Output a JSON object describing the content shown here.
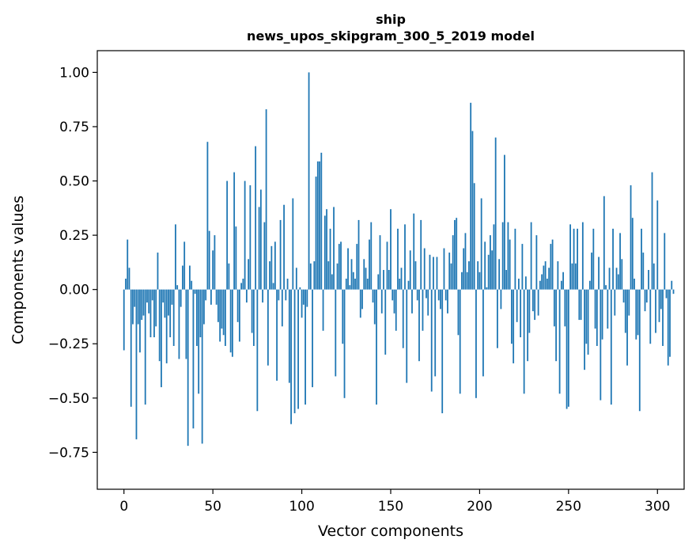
{
  "chart_data": {
    "type": "bar",
    "title": "ship",
    "subtitle": "news_upos_skipgram_300_5_2019 model",
    "xlabel": "Vector components",
    "ylabel": "Components values",
    "xlim": [
      -15,
      315
    ],
    "ylim": [
      -0.92,
      1.1
    ],
    "xticks": [
      0,
      50,
      100,
      150,
      200,
      250,
      300
    ],
    "yticks": [
      -0.75,
      -0.5,
      -0.25,
      0.0,
      0.25,
      0.5,
      0.75,
      1.0
    ],
    "ytick_labels": [
      "−0.75",
      "−0.50",
      "−0.25",
      "0.00",
      "0.25",
      "0.50",
      "0.75",
      "1.00"
    ],
    "grid": false,
    "bar_color": "#1f77b4",
    "values": [
      -0.28,
      0.05,
      0.23,
      0.1,
      -0.54,
      -0.16,
      -0.08,
      -0.69,
      -0.16,
      -0.29,
      -0.14,
      -0.12,
      -0.53,
      -0.06,
      -0.11,
      -0.22,
      -0.05,
      -0.22,
      -0.17,
      0.17,
      -0.33,
      -0.45,
      -0.06,
      -0.13,
      -0.34,
      -0.12,
      -0.22,
      -0.07,
      -0.26,
      0.3,
      0.02,
      -0.32,
      -0.08,
      0.11,
      0.22,
      -0.32,
      -0.72,
      0.11,
      0.04,
      -0.64,
      -0.02,
      -0.26,
      -0.48,
      -0.22,
      -0.71,
      -0.16,
      -0.05,
      0.68,
      0.27,
      -0.07,
      0.18,
      0.25,
      -0.07,
      -0.15,
      -0.24,
      -0.18,
      -0.21,
      -0.26,
      0.5,
      0.12,
      -0.29,
      -0.31,
      0.54,
      0.29,
      -0.15,
      -0.24,
      0.03,
      0.05,
      0.5,
      -0.06,
      0.14,
      0.48,
      -0.2,
      -0.26,
      0.66,
      -0.56,
      0.38,
      0.46,
      -0.06,
      0.31,
      0.83,
      -0.35,
      0.13,
      0.2,
      0.03,
      0.22,
      -0.42,
      -0.05,
      0.32,
      -0.17,
      0.39,
      -0.05,
      0.05,
      -0.43,
      -0.62,
      0.42,
      -0.57,
      0.1,
      -0.55,
      0.01,
      -0.13,
      -0.07,
      -0.53,
      -0.08,
      1.0,
      0.12,
      -0.45,
      0.13,
      0.52,
      0.59,
      0.59,
      0.63,
      -0.19,
      0.34,
      0.37,
      0.13,
      0.28,
      0.07,
      0.38,
      -0.4,
      0.12,
      0.21,
      0.22,
      -0.25,
      -0.5,
      0.05,
      0.19,
      0.02,
      0.14,
      0.08,
      0.05,
      0.21,
      0.32,
      -0.13,
      -0.09,
      0.14,
      0.1,
      0.05,
      0.23,
      0.31,
      -0.06,
      -0.16,
      -0.53,
      0.07,
      0.25,
      -0.11,
      0.09,
      -0.3,
      0.22,
      0.09,
      0.37,
      -0.05,
      -0.11,
      -0.19,
      0.28,
      0.05,
      0.1,
      -0.27,
      0.3,
      -0.43,
      0.04,
      0.18,
      -0.11,
      0.35,
      0.13,
      -0.05,
      -0.33,
      0.32,
      -0.19,
      0.19,
      -0.04,
      -0.12,
      0.16,
      -0.47,
      0.15,
      -0.4,
      0.15,
      -0.05,
      -0.09,
      -0.57,
      0.19,
      -0.05,
      -0.11,
      0.17,
      0.12,
      0.25,
      0.32,
      0.33,
      -0.21,
      -0.48,
      0.08,
      0.19,
      0.26,
      0.08,
      0.13,
      0.86,
      0.73,
      0.49,
      -0.5,
      0.13,
      0.08,
      0.42,
      -0.4,
      0.22,
      0.01,
      0.16,
      0.25,
      0.18,
      0.3,
      0.7,
      -0.27,
      0.14,
      -0.09,
      0.31,
      0.62,
      0.09,
      0.31,
      0.23,
      -0.25,
      -0.34,
      0.28,
      -0.15,
      0.05,
      -0.22,
      0.21,
      -0.48,
      0.06,
      -0.33,
      -0.2,
      0.31,
      -0.1,
      -0.14,
      0.25,
      -0.12,
      0.04,
      0.07,
      0.11,
      0.13,
      0.05,
      0.1,
      0.21,
      0.23,
      -0.17,
      -0.33,
      0.13,
      -0.48,
      0.04,
      0.08,
      -0.17,
      -0.55,
      -0.54,
      0.3,
      0.12,
      0.28,
      0.12,
      0.28,
      -0.14,
      -0.14,
      0.31,
      -0.37,
      -0.25,
      -0.3,
      0.04,
      0.17,
      0.28,
      -0.18,
      -0.26,
      0.15,
      -0.51,
      -0.23,
      0.43,
      0.02,
      -0.18,
      0.1,
      -0.53,
      0.28,
      -0.12,
      0.1,
      0.07,
      0.26,
      0.14,
      -0.06,
      -0.2,
      -0.35,
      -0.12,
      0.48,
      0.33,
      0.05,
      -0.23,
      -0.21,
      -0.56,
      0.28,
      0.17,
      -0.1,
      -0.06,
      0.09,
      -0.25,
      0.54,
      0.12,
      -0.2,
      0.41,
      -0.15,
      -0.09,
      -0.26,
      0.26,
      -0.04,
      -0.35,
      -0.31,
      0.04,
      -0.02
    ]
  }
}
